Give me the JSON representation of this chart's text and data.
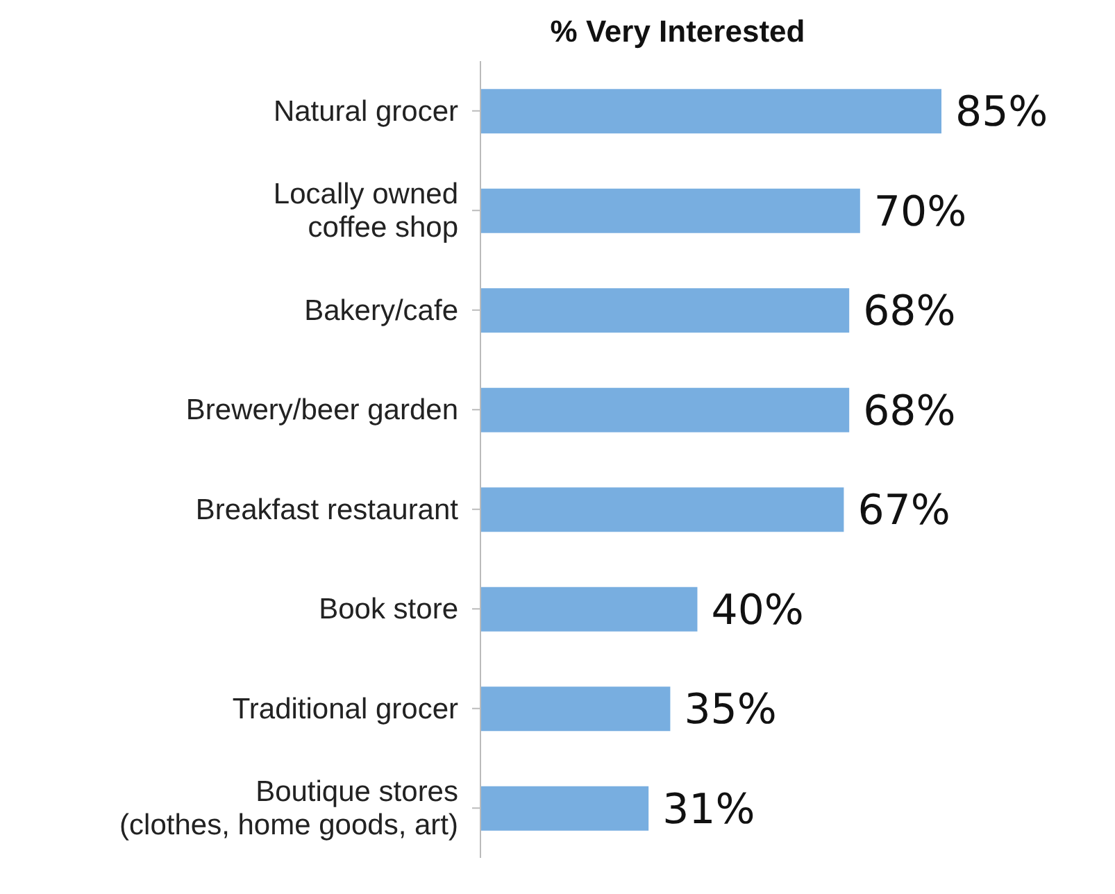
{
  "chart_data": {
    "type": "bar",
    "orientation": "horizontal",
    "title": "% Very Interested",
    "categories": [
      "Natural grocer",
      "Locally owned\ncoffee shop",
      "Bakery/cafe",
      "Brewery/beer garden",
      "Breakfast restaurant",
      "Book store",
      "Traditional grocer",
      "Boutique stores\n(clothes, home goods, art)"
    ],
    "values": [
      85,
      70,
      68,
      68,
      67,
      40,
      35,
      31
    ],
    "value_labels": [
      "85%",
      "70%",
      "68%",
      "68%",
      "67%",
      "40%",
      "35%",
      "31%"
    ],
    "color": "#78aee0"
  }
}
